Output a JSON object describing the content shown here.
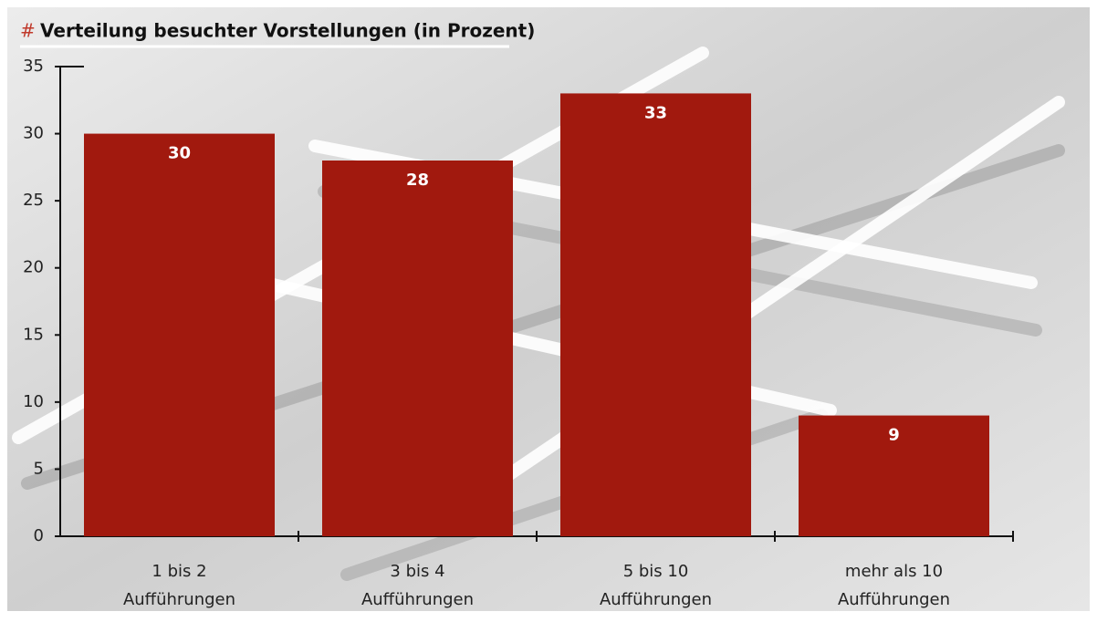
{
  "chart_data": {
    "type": "bar",
    "title_marker": "#",
    "title": "Verteilung besuchter Vorstellungen (in Prozent)",
    "categories": [
      [
        "1 bis 2",
        "Aufführungen"
      ],
      [
        "3 bis 4",
        "Aufführungen"
      ],
      [
        "5 bis 10",
        "Aufführungen"
      ],
      [
        "mehr als 10",
        "Aufführungen"
      ]
    ],
    "values": [
      30,
      28,
      33,
      9
    ],
    "color": "#a1190e",
    "ylim": [
      0,
      35
    ],
    "yticks": [
      0,
      5,
      10,
      15,
      20,
      25,
      30,
      35
    ],
    "grid": false
  }
}
